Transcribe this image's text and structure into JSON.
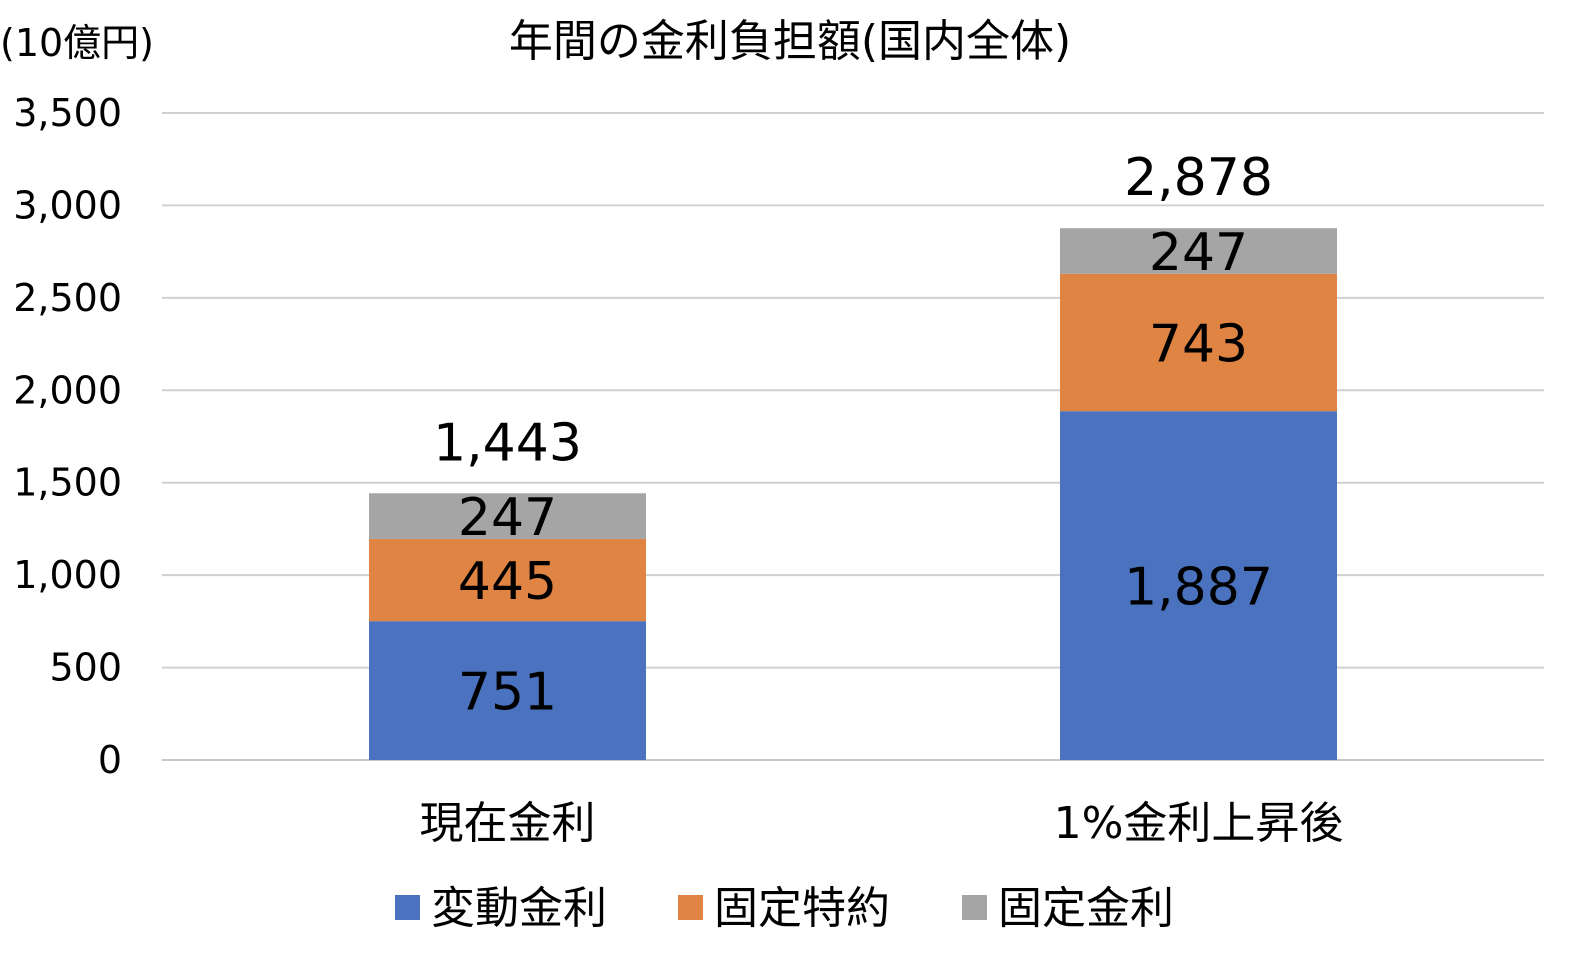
{
  "chart_data": {
    "type": "bar",
    "stacked": true,
    "title": "年間の金利負担額(国内全体)",
    "unit_label": "(10億円)",
    "categories": [
      "現在金利",
      "1%金利上昇後"
    ],
    "series": [
      {
        "name": "変動金利",
        "color": "#4A72BE",
        "values": [
          751,
          1887
        ]
      },
      {
        "name": "固定特約",
        "color": "#E08443",
        "values": [
          445,
          743
        ]
      },
      {
        "name": "固定金利",
        "color": "#A5A5A5",
        "values": [
          247,
          247
        ]
      }
    ],
    "segment_labels": [
      [
        "751",
        "445",
        "247"
      ],
      [
        "1,887",
        "743",
        "247"
      ]
    ],
    "totals": [
      1443,
      2878
    ],
    "total_labels": [
      "1,443",
      "2,878"
    ],
    "ylim": [
      0,
      3500
    ],
    "yticks": [
      0,
      500,
      1000,
      1500,
      2000,
      2500,
      3000,
      3500
    ],
    "ytick_labels": [
      "0",
      "500",
      "1,000",
      "1,500",
      "2,000",
      "2,500",
      "3,000",
      "3,500"
    ],
    "grid": true,
    "legend_position": "bottom"
  }
}
